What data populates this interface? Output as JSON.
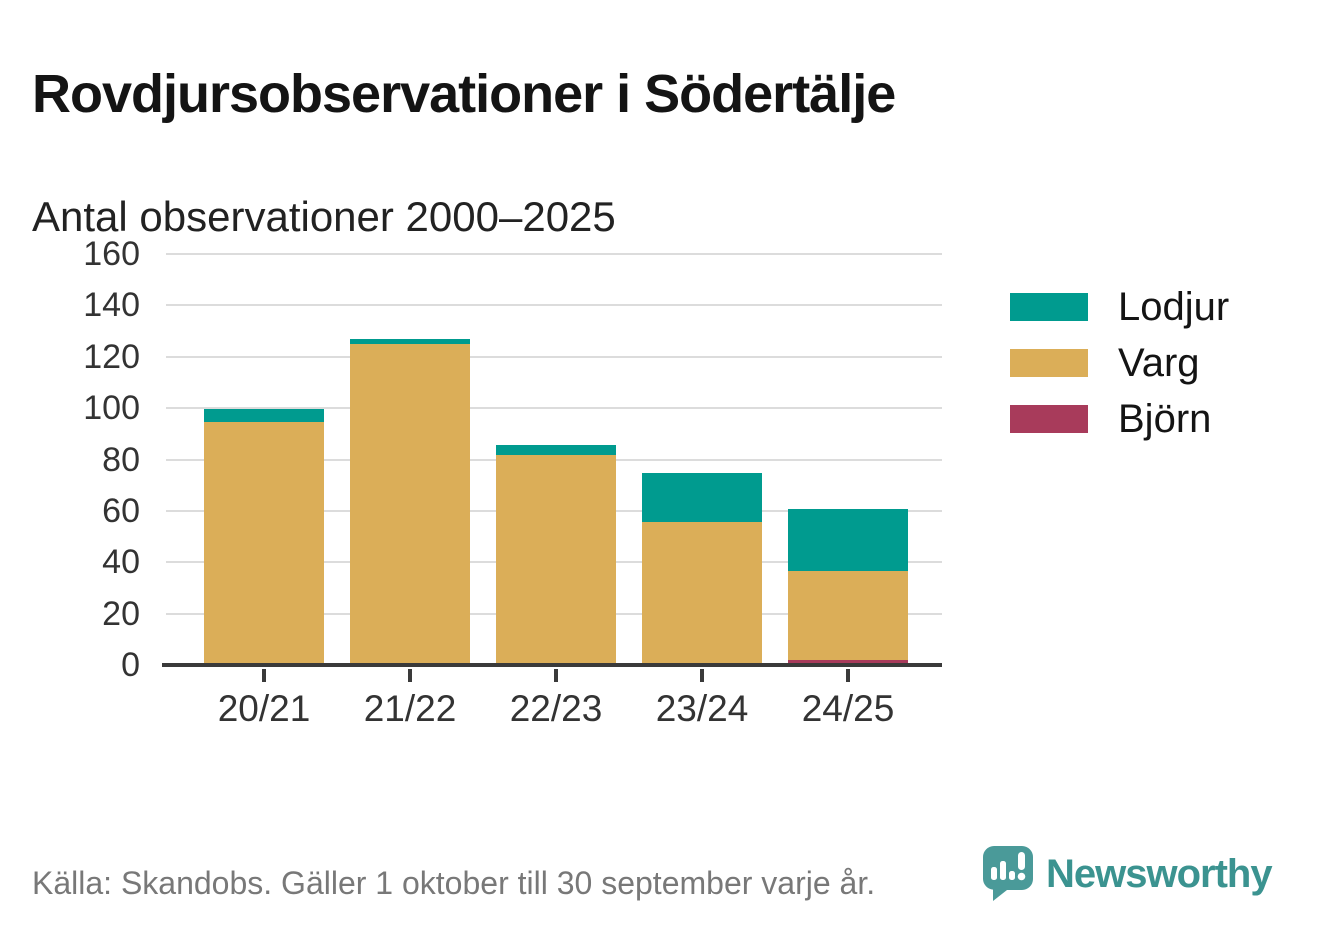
{
  "page": {
    "title": "Rovdjursobservationer i Södertälje",
    "subtitle": "Antal observationer 2000–2025",
    "source_note": "Källa: Skandobs. Gäller 1 oktober till 30 september varje år."
  },
  "branding": {
    "wordmark": "Newsworthy",
    "icon": "newsworthy-speech-bubble-bar-chart-icon",
    "color": "#3B9390",
    "icon_color": "#4A9A99"
  },
  "chart_data": {
    "type": "bar",
    "stacked": true,
    "title": "Antal observationer 2000–2025",
    "categories": [
      "20/21",
      "21/22",
      "22/23",
      "23/24",
      "24/25"
    ],
    "series": [
      {
        "name": "Lodjur",
        "color": "#009B8F",
        "values": [
          5,
          2,
          4,
          19,
          24
        ]
      },
      {
        "name": "Varg",
        "color": "#DBAE58",
        "values": [
          94,
          124,
          81,
          55,
          35
        ]
      },
      {
        "name": "Björn",
        "color": "#A83B5B",
        "values": [
          0,
          0,
          0,
          0,
          1
        ]
      }
    ],
    "totals": [
      99,
      126,
      85,
      74,
      60
    ],
    "stack_order_bottom_to_top": [
      "Björn",
      "Varg",
      "Lodjur"
    ],
    "ylim": [
      0,
      160
    ],
    "y_ticks": [
      0,
      20,
      40,
      60,
      80,
      100,
      120,
      140,
      160
    ],
    "grid": "horizontal",
    "legend_position": "right",
    "colors": {
      "grid": "#dcdcdc",
      "axis": "#3a3a3a",
      "tick_text": "#333333"
    }
  }
}
